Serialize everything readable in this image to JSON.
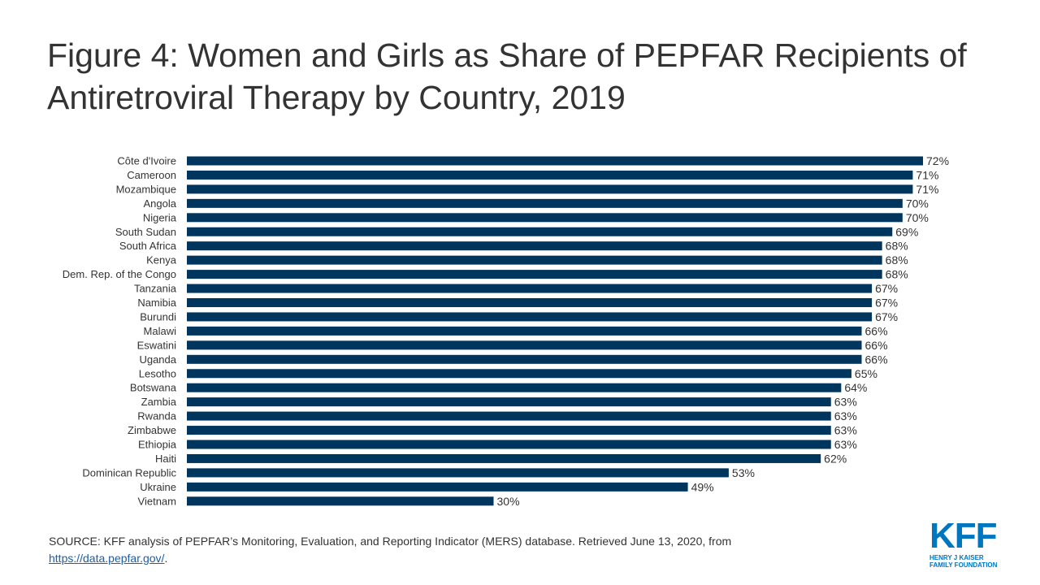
{
  "title": "Figure 4: Women and Girls as Share of PEPFAR Recipients of Antiretroviral Therapy by Country, 2019",
  "chart_data": {
    "type": "bar",
    "orientation": "horizontal",
    "categories": [
      "Côte d'Ivoire",
      "Cameroon",
      "Mozambique",
      "Angola",
      "Nigeria",
      "South Sudan",
      "South Africa",
      "Kenya",
      "Dem. Rep. of the Congo",
      "Tanzania",
      "Namibia",
      "Burundi",
      "Malawi",
      "Eswatini",
      "Uganda",
      "Lesotho",
      "Botswana",
      "Zambia",
      "Rwanda",
      "Zimbabwe",
      "Ethiopia",
      "Haiti",
      "Dominican Republic",
      "Ukraine",
      "Vietnam"
    ],
    "values": [
      72,
      71,
      71,
      70,
      70,
      69,
      68,
      68,
      68,
      67,
      67,
      67,
      66,
      66,
      66,
      65,
      64,
      63,
      63,
      63,
      63,
      62,
      53,
      49,
      30
    ],
    "value_labels": [
      "72%",
      "71%",
      "71%",
      "70%",
      "70%",
      "69%",
      "68%",
      "68%",
      "68%",
      "67%",
      "67%",
      "67%",
      "66%",
      "66%",
      "66%",
      "65%",
      "64%",
      "63%",
      "63%",
      "63%",
      "63%",
      "62%",
      "53%",
      "49%",
      "30%"
    ],
    "bar_color": "#00365e",
    "xlim": [
      0,
      72
    ],
    "grid": false,
    "legend": false
  },
  "source": {
    "text": "SOURCE: KFF analysis of PEPFAR’s Monitoring, Evaluation, and Reporting Indicator (MERS) database. Retrieved June 13, 2020, from",
    "link_text": "https://data.pepfar.gov/",
    "trailing": "."
  },
  "logo": {
    "mark": "KFF",
    "line1": "HENRY J KAISER",
    "line2": "FAMILY FOUNDATION",
    "color": "#0076bf"
  }
}
